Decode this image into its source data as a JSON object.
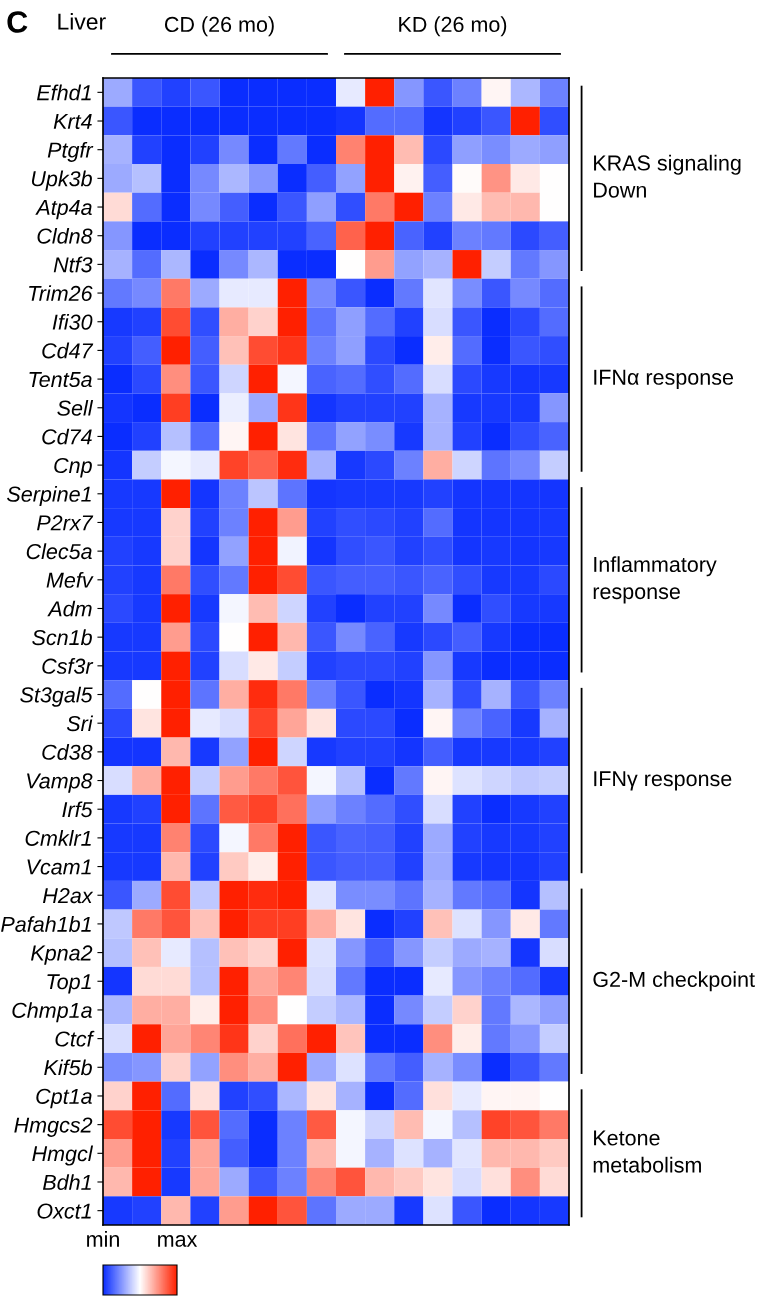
{
  "chart_data": {
    "type": "heatmap",
    "title": "Liver",
    "annotations": [
      "C",
      "CD (26 mo)",
      "KD (26 mo)",
      "KRAS signaling\nDown",
      "IFNα response",
      "Inflammatory\nresponse",
      "IFNγ response",
      "G2-M checkpoint",
      "Ketone\nmetabolism"
    ],
    "categories": [
      null,
      null,
      null,
      null,
      null,
      null,
      null,
      null,
      null,
      null,
      null,
      null,
      null,
      null,
      null,
      null
    ],
    "y_categories": [
      "Efhd1",
      "Krt4",
      "Ptgfr",
      "Upk3b",
      "Atp4a",
      "Cldn8",
      "Ntf3",
      "Trim26",
      "Ifi30",
      "Cd47",
      "Tent5a",
      "Sell",
      "Cd74",
      "Cnp",
      "Serpine1",
      "P2rx7",
      "Clec5a",
      "Mefv",
      "Adm",
      "Scn1b",
      "Csf3r",
      "St3gal5",
      "Sri",
      "Cd38",
      "Vamp8",
      "Irf5",
      "Cmklr1",
      "Vcam1",
      "H2ax",
      "Pafah1b1",
      "Kpna2",
      "Top1",
      "Chmp1a",
      "Ctcf",
      "Kif5b",
      "Cpt1a",
      "Hmgcs2",
      "Hmgcl",
      "Bdh1",
      "Oxct1"
    ],
    "cells": [
      [
        0.3,
        0.1,
        0.05,
        0.1,
        0,
        0,
        0,
        0,
        0.45,
        1,
        0.25,
        0.1,
        0.2,
        0.52,
        0.33,
        0.2
      ],
      [
        0.1,
        0,
        0,
        0,
        0,
        0,
        0,
        0,
        0.02,
        0.15,
        0.15,
        0.02,
        0.05,
        0.1,
        1,
        0.08
      ],
      [
        0.32,
        0.05,
        0,
        0.05,
        0.22,
        0,
        0.18,
        0,
        0.78,
        1,
        0.65,
        0.07,
        0.27,
        0.23,
        0.3,
        0.27
      ],
      [
        0.3,
        0.35,
        0,
        0.22,
        0.33,
        0.25,
        0,
        0.12,
        0.28,
        1,
        0.53,
        0.12,
        0.51,
        0.74,
        0.55,
        0.5
      ],
      [
        0.58,
        0.15,
        0,
        0.22,
        0.12,
        0,
        0.1,
        0.27,
        0.08,
        0.8,
        1,
        0.2,
        0.55,
        0.65,
        0.66,
        0.5
      ],
      [
        0.25,
        0,
        0,
        0.05,
        0.05,
        0.05,
        0.05,
        0.13,
        0.85,
        1,
        0.13,
        0.05,
        0.2,
        0.18,
        0.07,
        0.12
      ],
      [
        0.32,
        0.15,
        0.33,
        0,
        0.22,
        0.33,
        0,
        0,
        0.5,
        0.72,
        0.28,
        0.32,
        1,
        0.38,
        0.18,
        0.25
      ],
      [
        0.18,
        0.22,
        0.8,
        0.3,
        0.45,
        0.45,
        1,
        0.22,
        0.1,
        0,
        0.18,
        0.44,
        0.23,
        0.1,
        0.22,
        0.15
      ],
      [
        0.03,
        0.05,
        0.9,
        0.08,
        0.68,
        0.6,
        1,
        0.17,
        0.27,
        0.15,
        0.05,
        0.42,
        0.1,
        0,
        0.07,
        0.15
      ],
      [
        0.05,
        0.12,
        1,
        0.12,
        0.64,
        0.9,
        0.95,
        0.2,
        0.27,
        0.07,
        0,
        0.54,
        0.15,
        0,
        0.1,
        0.08
      ],
      [
        0,
        0.07,
        0.75,
        0.1,
        0.4,
        1,
        0.48,
        0.13,
        0.15,
        0.08,
        0.15,
        0.42,
        0.07,
        0.03,
        0.02,
        0.03
      ],
      [
        0.02,
        0,
        0.93,
        0,
        0.46,
        0.3,
        0.95,
        0.02,
        0.05,
        0.05,
        0.05,
        0.32,
        0.03,
        0.03,
        0.03,
        0.25
      ],
      [
        0,
        0.05,
        0.35,
        0.15,
        0.52,
        1,
        0.56,
        0.17,
        0.28,
        0.23,
        0.03,
        0.32,
        0.05,
        0,
        0.08,
        0.13
      ],
      [
        0.02,
        0.38,
        0.48,
        0.45,
        0.92,
        0.85,
        0.97,
        0.32,
        0.03,
        0.07,
        0.2,
        0.68,
        0.4,
        0.17,
        0.22,
        0.38
      ],
      [
        0.03,
        0.03,
        1,
        0.02,
        0.2,
        0.36,
        0.17,
        0.02,
        0.03,
        0.03,
        0.03,
        0.05,
        0.02,
        0.02,
        0.02,
        0.02
      ],
      [
        0.03,
        0.03,
        0.6,
        0.05,
        0.2,
        1,
        0.72,
        0.05,
        0.08,
        0.07,
        0.05,
        0.15,
        0.02,
        0.02,
        0.02,
        0.03
      ],
      [
        0.05,
        0.03,
        0.6,
        0.02,
        0.28,
        1,
        0.47,
        0.02,
        0.08,
        0.1,
        0.05,
        0.08,
        0.02,
        0.03,
        0.02,
        0.03
      ],
      [
        0.05,
        0.03,
        0.8,
        0.08,
        0.18,
        1,
        0.9,
        0.1,
        0.12,
        0.12,
        0.1,
        0.13,
        0.08,
        0.03,
        0.03,
        0.07
      ],
      [
        0.07,
        0.03,
        1,
        0.03,
        0.48,
        0.65,
        0.4,
        0.05,
        0,
        0.05,
        0.05,
        0.22,
        0,
        0.08,
        0.03,
        0.03
      ],
      [
        0.03,
        0.03,
        0.72,
        0.07,
        0.5,
        1,
        0.66,
        0.1,
        0.22,
        0.13,
        0.03,
        0.07,
        0.12,
        0.03,
        0,
        0
      ],
      [
        0.03,
        0.03,
        1,
        0.05,
        0.42,
        0.55,
        0.38,
        0.05,
        0.07,
        0.07,
        0.05,
        0.25,
        0.03,
        0,
        0,
        0
      ],
      [
        0.15,
        0.5,
        1,
        0.17,
        0.68,
        0.97,
        0.8,
        0.2,
        0.1,
        0,
        0.02,
        0.32,
        0.08,
        0.32,
        0.1,
        0.2
      ],
      [
        0.07,
        0.56,
        1,
        0.45,
        0.42,
        0.92,
        0.7,
        0.56,
        0.07,
        0.07,
        0,
        0.52,
        0.2,
        0.13,
        0.03,
        0.32
      ],
      [
        0.02,
        0.02,
        0.66,
        0.03,
        0.28,
        1,
        0.4,
        0.03,
        0.05,
        0.05,
        0.02,
        0.12,
        0.03,
        0.03,
        0.03,
        0.05
      ],
      [
        0.42,
        0.68,
        1,
        0.38,
        0.72,
        0.8,
        0.88,
        0.48,
        0.35,
        0,
        0.18,
        0.52,
        0.43,
        0.4,
        0.37,
        0.38
      ],
      [
        0.03,
        0.05,
        1,
        0.17,
        0.87,
        0.92,
        0.82,
        0.27,
        0.2,
        0.15,
        0.08,
        0.42,
        0.05,
        0,
        0.03,
        0.05
      ],
      [
        0.03,
        0.03,
        0.78,
        0.07,
        0.48,
        0.8,
        1,
        0.1,
        0.13,
        0.12,
        0.05,
        0.3,
        0.05,
        0.03,
        0.03,
        0.05
      ],
      [
        0.03,
        0.03,
        0.66,
        0.05,
        0.62,
        0.54,
        1,
        0.1,
        0.12,
        0.12,
        0.05,
        0.3,
        0.03,
        0.02,
        0.02,
        0.05
      ],
      [
        0.1,
        0.3,
        0.9,
        0.37,
        1,
        0.97,
        1,
        0.44,
        0.23,
        0.23,
        0.17,
        0.32,
        0.18,
        0.15,
        0.02,
        0.35
      ],
      [
        0.37,
        0.8,
        0.88,
        0.64,
        1,
        0.93,
        0.93,
        0.68,
        0.56,
        0,
        0.05,
        0.64,
        0.43,
        0.25,
        0.55,
        0.18
      ],
      [
        0.35,
        0.64,
        0.45,
        0.35,
        0.64,
        0.6,
        1,
        0.43,
        0.25,
        0.12,
        0.25,
        0.38,
        0.3,
        0.32,
        0.02,
        0.42
      ],
      [
        0.02,
        0.58,
        0.58,
        0.35,
        1,
        0.7,
        0.77,
        0.42,
        0.18,
        0,
        0,
        0.45,
        0.25,
        0.2,
        0.15,
        0.03
      ],
      [
        0.33,
        0.68,
        0.68,
        0.54,
        1,
        0.75,
        0.5,
        0.38,
        0.33,
        0,
        0.22,
        0.38,
        0.6,
        0.18,
        0.33,
        0.27
      ],
      [
        0.42,
        1,
        0.7,
        0.77,
        0.95,
        0.6,
        0.82,
        1,
        0.63,
        0,
        0,
        0.75,
        0.54,
        0.18,
        0.25,
        0.38
      ],
      [
        0.23,
        0.25,
        0.6,
        0.28,
        0.75,
        0.68,
        1,
        0.3,
        0.43,
        0.18,
        0.12,
        0.32,
        0.23,
        0,
        0.1,
        0.18
      ],
      [
        0.6,
        1,
        0.15,
        0.57,
        0.05,
        0.08,
        0.33,
        0.56,
        0.32,
        0,
        0.15,
        0.57,
        0.45,
        0.52,
        0.52,
        0.5
      ],
      [
        0.9,
        1,
        0.03,
        0.88,
        0.15,
        0,
        0.2,
        0.87,
        0.48,
        0.4,
        0.65,
        0.48,
        0.35,
        0.92,
        0.88,
        0.8
      ],
      [
        0.72,
        1,
        0.05,
        0.7,
        0.12,
        0,
        0.2,
        0.66,
        0.48,
        0.32,
        0.43,
        0.32,
        0.44,
        0.66,
        0.66,
        0.62
      ],
      [
        0.66,
        1,
        0.03,
        0.7,
        0.3,
        0.1,
        0.2,
        0.77,
        0.88,
        0.66,
        0.62,
        0.56,
        0.42,
        0.57,
        0.75,
        0.58
      ],
      [
        0.03,
        0.05,
        0.66,
        0.05,
        0.72,
        1,
        0.88,
        0.17,
        0.3,
        0.3,
        0.03,
        0.43,
        0.1,
        0,
        0.02,
        0.03
      ]
    ],
    "colors": [
      "#0a2dff",
      "#ffffff",
      "#ff2000"
    ],
    "clim": [
      0,
      1
    ],
    "cticks": [
      {
        "value": 0,
        "label": "min"
      },
      {
        "value": 1,
        "label": "max"
      }
    ]
  }
}
